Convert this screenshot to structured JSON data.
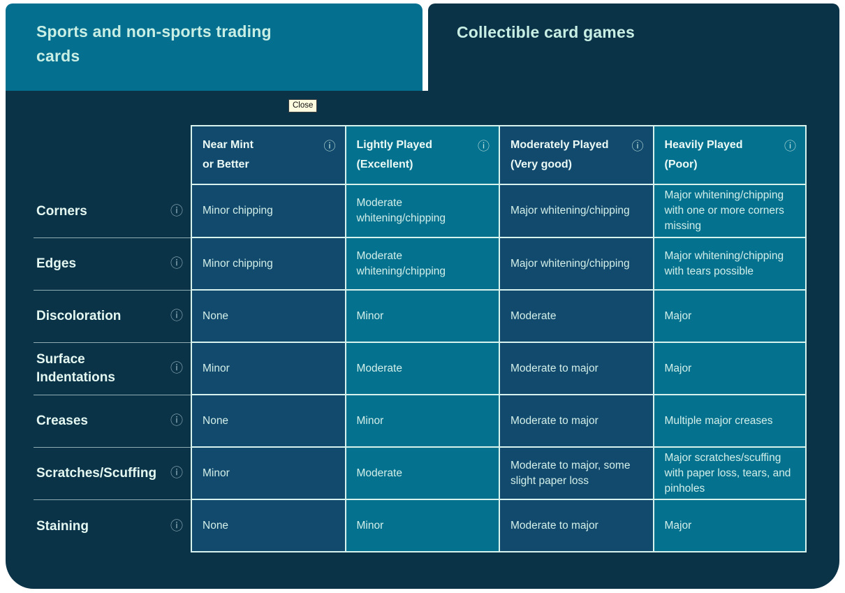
{
  "tabs": [
    {
      "label": "Sports and non-sports trading cards",
      "active": true
    },
    {
      "label": "Collectible card games",
      "active": false
    }
  ],
  "tooltip": {
    "label": "Close"
  },
  "icons": {
    "info": "ⓘ"
  },
  "colors": {
    "page_background": "#ffffff",
    "panel_navy": "#0a3348",
    "active_tab_teal": "#056f90",
    "dark_column_cell": "#114a6d",
    "teal_column_cell": "#04718f",
    "grid_line": "#d8f2ee",
    "text_mint": "#d3efe9"
  },
  "grading_table": {
    "column_headers": [
      {
        "title": "Near Mint\nor Better"
      },
      {
        "title": "Lightly Played\n(Excellent)"
      },
      {
        "title": "Moderately Played\n(Very good)"
      },
      {
        "title": "Heavily Played\n(Poor)"
      }
    ],
    "rows": [
      {
        "label": "Corners",
        "cells": [
          "Minor chipping",
          "Moderate whitening/chipping",
          "Major whitening/chipping",
          "Major whitening/chipping with one or more corners missing"
        ]
      },
      {
        "label": "Edges",
        "cells": [
          "Minor chipping",
          "Moderate whitening/chipping",
          "Major whitening/chipping",
          "Major whitening/chipping with tears possible"
        ]
      },
      {
        "label": "Discoloration",
        "cells": [
          "None",
          "Minor",
          "Moderate",
          "Major"
        ]
      },
      {
        "label": "Surface Indentations",
        "cells": [
          "Minor",
          "Moderate",
          "Moderate to major",
          "Major"
        ]
      },
      {
        "label": "Creases",
        "cells": [
          "None",
          "Minor",
          "Moderate to major",
          "Multiple major creases"
        ]
      },
      {
        "label": "Scratches/Scuffing",
        "cells": [
          "Minor",
          "Moderate",
          "Moderate to major, some slight paper loss",
          "Major scratches/scuffing with paper loss, tears, and pinholes"
        ]
      },
      {
        "label": "Staining",
        "cells": [
          "None",
          "Minor",
          "Moderate to major",
          "Major"
        ]
      }
    ]
  }
}
